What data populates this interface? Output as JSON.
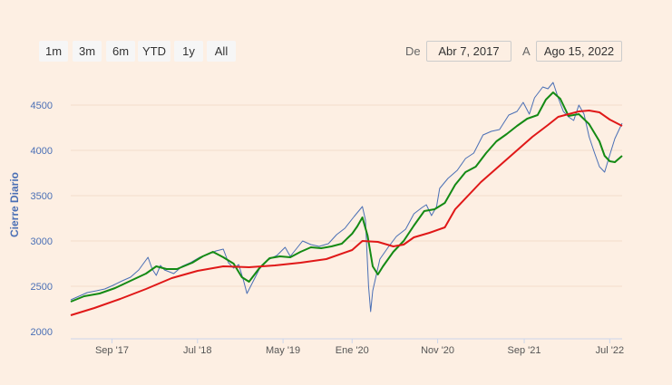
{
  "range_selector": {
    "buttons": [
      "1m",
      "3m",
      "6m",
      "YTD",
      "1y",
      "All"
    ],
    "from_label": "De",
    "from_value": "Abr 7, 2017",
    "to_label": "A",
    "to_value": "Ago 15, 2022"
  },
  "chart_data": {
    "type": "line",
    "ylabel": "Cierre Diario",
    "ylim": [
      2000,
      4800
    ],
    "yticks": [
      2000,
      2500,
      3000,
      3500,
      4000,
      4500
    ],
    "xlim": [
      2017.27,
      2022.62
    ],
    "xticks": [
      {
        "label": "Sep '17",
        "x": 2017.67
      },
      {
        "label": "Jul '18",
        "x": 2018.5
      },
      {
        "label": "May '19",
        "x": 2019.33
      },
      {
        "label": "Ene '20",
        "x": 2020.0
      },
      {
        "label": "Nov '20",
        "x": 2020.83
      },
      {
        "label": "Sep '21",
        "x": 2021.67
      },
      {
        "label": "Jul '22",
        "x": 2022.5
      }
    ],
    "grid": true,
    "colors": {
      "close": "#4a6fb5",
      "ma_short": "#148a14",
      "ma_long": "#e01818",
      "axis_text": "#4a6fb5"
    },
    "series": [
      {
        "key": "close",
        "x": [
          2017.27,
          2017.35,
          2017.43,
          2017.52,
          2017.6,
          2017.68,
          2017.77,
          2017.85,
          2017.93,
          2018.02,
          2018.06,
          2018.1,
          2018.14,
          2018.18,
          2018.27,
          2018.35,
          2018.43,
          2018.52,
          2018.6,
          2018.68,
          2018.75,
          2018.8,
          2018.85,
          2018.9,
          2018.95,
          2018.98,
          2019.02,
          2019.1,
          2019.18,
          2019.27,
          2019.35,
          2019.4,
          2019.45,
          2019.52,
          2019.6,
          2019.68,
          2019.77,
          2019.85,
          2019.93,
          2020.02,
          2020.1,
          2020.13,
          2020.16,
          2020.18,
          2020.2,
          2020.23,
          2020.27,
          2020.35,
          2020.43,
          2020.52,
          2020.6,
          2020.68,
          2020.72,
          2020.77,
          2020.82,
          2020.85,
          2020.93,
          2021.02,
          2021.1,
          2021.18,
          2021.27,
          2021.35,
          2021.43,
          2021.52,
          2021.6,
          2021.66,
          2021.72,
          2021.77,
          2021.85,
          2021.9,
          2021.95,
          2022.0,
          2022.05,
          2022.1,
          2022.15,
          2022.2,
          2022.25,
          2022.3,
          2022.35,
          2022.4,
          2022.45,
          2022.5,
          2022.55,
          2022.62
        ],
        "values": [
          2350,
          2390,
          2430,
          2450,
          2470,
          2510,
          2560,
          2600,
          2680,
          2820,
          2690,
          2620,
          2730,
          2680,
          2640,
          2720,
          2760,
          2820,
          2850,
          2890,
          2910,
          2760,
          2700,
          2740,
          2550,
          2420,
          2510,
          2690,
          2790,
          2840,
          2930,
          2830,
          2900,
          3000,
          2960,
          2940,
          2970,
          3070,
          3140,
          3270,
          3380,
          3230,
          2500,
          2220,
          2450,
          2600,
          2800,
          2930,
          3050,
          3130,
          3300,
          3370,
          3400,
          3280,
          3380,
          3580,
          3690,
          3780,
          3910,
          3970,
          4170,
          4210,
          4230,
          4390,
          4430,
          4530,
          4400,
          4580,
          4700,
          4680,
          4750,
          4580,
          4430,
          4370,
          4330,
          4500,
          4400,
          4150,
          3980,
          3820,
          3760,
          3950,
          4130,
          4300
        ]
      },
      {
        "key": "ma_short",
        "x": [
          2017.27,
          2017.4,
          2017.55,
          2017.7,
          2017.85,
          2018.0,
          2018.1,
          2018.2,
          2018.3,
          2018.45,
          2018.55,
          2018.65,
          2018.75,
          2018.85,
          2018.93,
          2019.0,
          2019.1,
          2019.2,
          2019.3,
          2019.4,
          2019.5,
          2019.6,
          2019.7,
          2019.8,
          2019.9,
          2020.0,
          2020.05,
          2020.1,
          2020.15,
          2020.2,
          2020.25,
          2020.3,
          2020.4,
          2020.5,
          2020.6,
          2020.7,
          2020.8,
          2020.9,
          2021.0,
          2021.1,
          2021.2,
          2021.3,
          2021.4,
          2021.5,
          2021.6,
          2021.7,
          2021.8,
          2021.88,
          2021.95,
          2022.02,
          2022.1,
          2022.2,
          2022.3,
          2022.4,
          2022.45,
          2022.5,
          2022.55,
          2022.62
        ],
        "values": [
          2330,
          2390,
          2420,
          2480,
          2560,
          2640,
          2720,
          2690,
          2690,
          2760,
          2830,
          2880,
          2820,
          2750,
          2600,
          2550,
          2700,
          2810,
          2830,
          2820,
          2880,
          2930,
          2920,
          2940,
          2970,
          3080,
          3160,
          3260,
          3060,
          2720,
          2630,
          2720,
          2880,
          3000,
          3170,
          3330,
          3350,
          3420,
          3620,
          3760,
          3820,
          3970,
          4100,
          4180,
          4270,
          4350,
          4390,
          4560,
          4640,
          4570,
          4380,
          4400,
          4290,
          4100,
          3940,
          3880,
          3870,
          3940
        ]
      },
      {
        "key": "ma_long",
        "x": [
          2017.27,
          2017.5,
          2017.75,
          2018.0,
          2018.25,
          2018.5,
          2018.75,
          2019.0,
          2019.25,
          2019.5,
          2019.75,
          2020.0,
          2020.1,
          2020.25,
          2020.4,
          2020.5,
          2020.6,
          2020.75,
          2020.9,
          2021.0,
          2021.25,
          2021.5,
          2021.75,
          2021.9,
          2022.0,
          2022.1,
          2022.2,
          2022.3,
          2022.4,
          2022.5,
          2022.62
        ],
        "values": [
          2180,
          2260,
          2360,
          2470,
          2590,
          2670,
          2720,
          2710,
          2730,
          2760,
          2800,
          2900,
          3000,
          2990,
          2940,
          2960,
          3040,
          3090,
          3150,
          3350,
          3650,
          3900,
          4150,
          4280,
          4370,
          4400,
          4430,
          4440,
          4420,
          4340,
          4270
        ]
      }
    ]
  }
}
